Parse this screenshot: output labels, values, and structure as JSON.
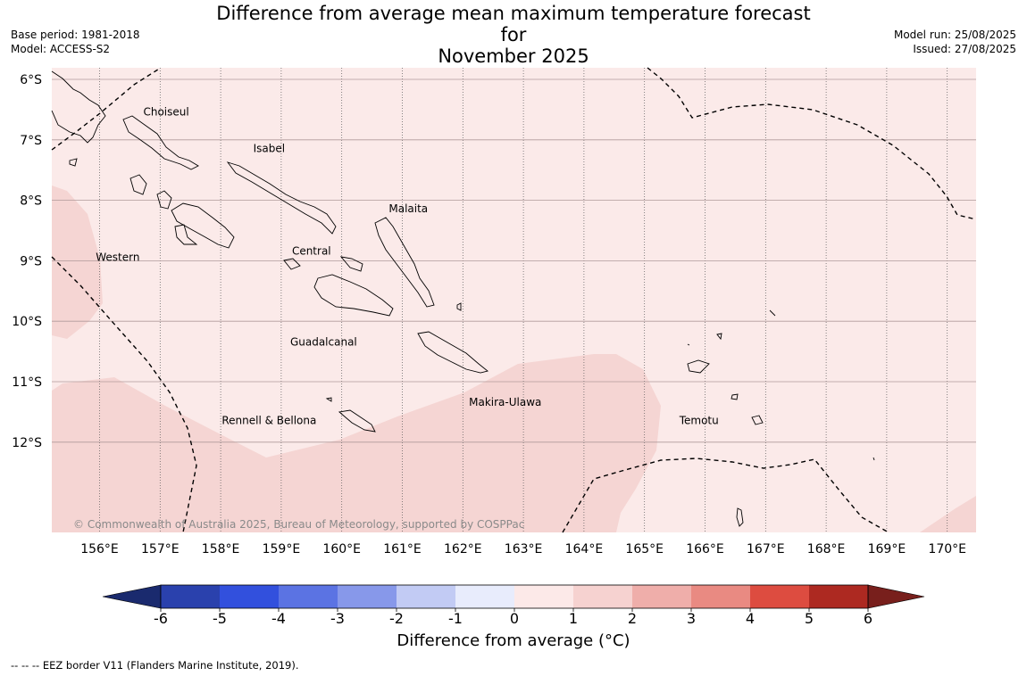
{
  "title_line1": "Difference from average mean maximum temperature forecast for",
  "title_line2": "November 2025",
  "base_period": "Base period: 1981-2018",
  "model": "Model: ACCESS-S2",
  "model_run": "Model run: 25/08/2025",
  "issued": "Issued: 27/08/2025",
  "copyright": "© Commonwealth of Australia 2025, Bureau of Meteorology, supported by COSPPac",
  "footnote": "--  --  -- EEZ border V11 (Flanders Marine Institute, 2019).",
  "map": {
    "lat_labels": [
      "6°S",
      "7°S",
      "8°S",
      "9°S",
      "10°S",
      "11°S",
      "12°S"
    ],
    "lat_values": [
      -6,
      -7,
      -8,
      -9,
      -10,
      -11,
      -12
    ],
    "lon_labels": [
      "156°E",
      "157°E",
      "158°E",
      "159°E",
      "160°E",
      "161°E",
      "162°E",
      "163°E",
      "164°E",
      "165°E",
      "166°E",
      "167°E",
      "168°E",
      "169°E",
      "170°E"
    ],
    "lon_values": [
      156,
      157,
      158,
      159,
      160,
      161,
      162,
      163,
      164,
      165,
      166,
      167,
      168,
      169,
      170
    ],
    "extent": {
      "lon_min": 155.2,
      "lon_max": 170.5,
      "lat_min": -13.5,
      "lat_max": -5.8
    },
    "provinces": [
      {
        "name": "Choiseul",
        "lon": 157.1,
        "lat": -6.6
      },
      {
        "name": "Isabel",
        "lon": 158.8,
        "lat": -7.2
      },
      {
        "name": "Malaita",
        "lon": 161.1,
        "lat": -8.2
      },
      {
        "name": "Western",
        "lon": 156.3,
        "lat": -9.0
      },
      {
        "name": "Central",
        "lon": 159.5,
        "lat": -8.9
      },
      {
        "name": "Guadalcanal",
        "lon": 159.7,
        "lat": -10.4
      },
      {
        "name": "Makira-Ulawa",
        "lon": 162.7,
        "lat": -11.4
      },
      {
        "name": "Temotu",
        "lon": 165.9,
        "lat": -11.7
      },
      {
        "name": "Rennell & Bellona",
        "lon": 158.8,
        "lat": -11.7
      }
    ],
    "shading": {
      "background_class": "0 to 1",
      "background_color": "#fbeae9",
      "patch_class": "1 to 2",
      "patch_color": "#f5d5d3"
    }
  },
  "colorbar": {
    "title": "Difference from average (°C)",
    "ticks": [
      "-6",
      "-5",
      "-4",
      "-3",
      "-2",
      "-1",
      "0",
      "1",
      "2",
      "3",
      "4",
      "5",
      "6"
    ],
    "colors": [
      "#27368c",
      "#2a41ad",
      "#3250dd",
      "#5b73e3",
      "#8798ea",
      "#c2cbf4",
      "#e8ecfc",
      "#fce9e8",
      "#f6d2d0",
      "#efaeaa",
      "#e98a82",
      "#dd4c40",
      "#ad2921",
      "#781f1c"
    ],
    "under_color": "#1a2a6e",
    "over_color": "#781f1c"
  }
}
